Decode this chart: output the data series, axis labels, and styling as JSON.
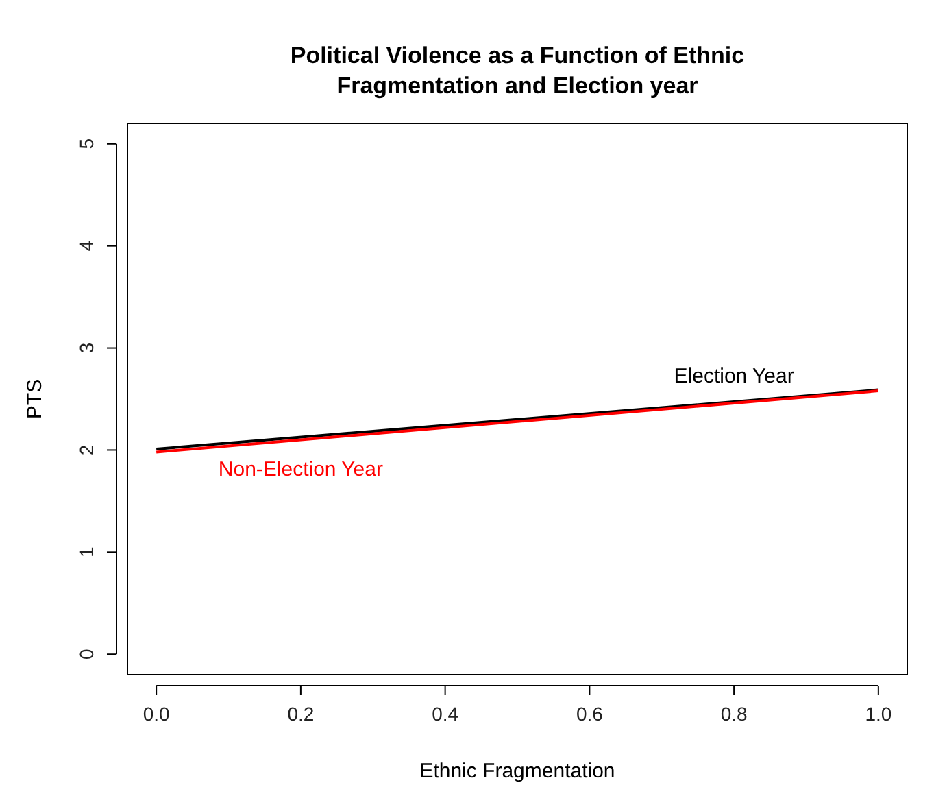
{
  "chart_data": {
    "type": "line",
    "title": "Political Violence as a Function of Ethnic\nFragmentation and Election year",
    "xlabel": "Ethnic Fragmentation",
    "ylabel": "PTS",
    "x": [
      0,
      1
    ],
    "series": [
      {
        "name": "Election Year",
        "color": "#000000",
        "values": [
          2.01,
          2.59
        ]
      },
      {
        "name": "Non-Election Year",
        "color": "#ff0000",
        "values": [
          1.98,
          2.58
        ]
      }
    ],
    "xlim": [
      -0.04,
      1.04
    ],
    "ylim": [
      -0.2,
      5.2
    ],
    "xticks": [
      {
        "value": 0,
        "label": "0.0"
      },
      {
        "value": 0.2,
        "label": "0.2"
      },
      {
        "value": 0.4,
        "label": "0.4"
      },
      {
        "value": 0.6,
        "label": "0.6"
      },
      {
        "value": 0.8,
        "label": "0.8"
      },
      {
        "value": 1,
        "label": "1.0"
      }
    ],
    "yticks": [
      0,
      1,
      2,
      3,
      4,
      5
    ],
    "grid": false,
    "legend": false,
    "marker": "none",
    "line_style": "solid"
  }
}
